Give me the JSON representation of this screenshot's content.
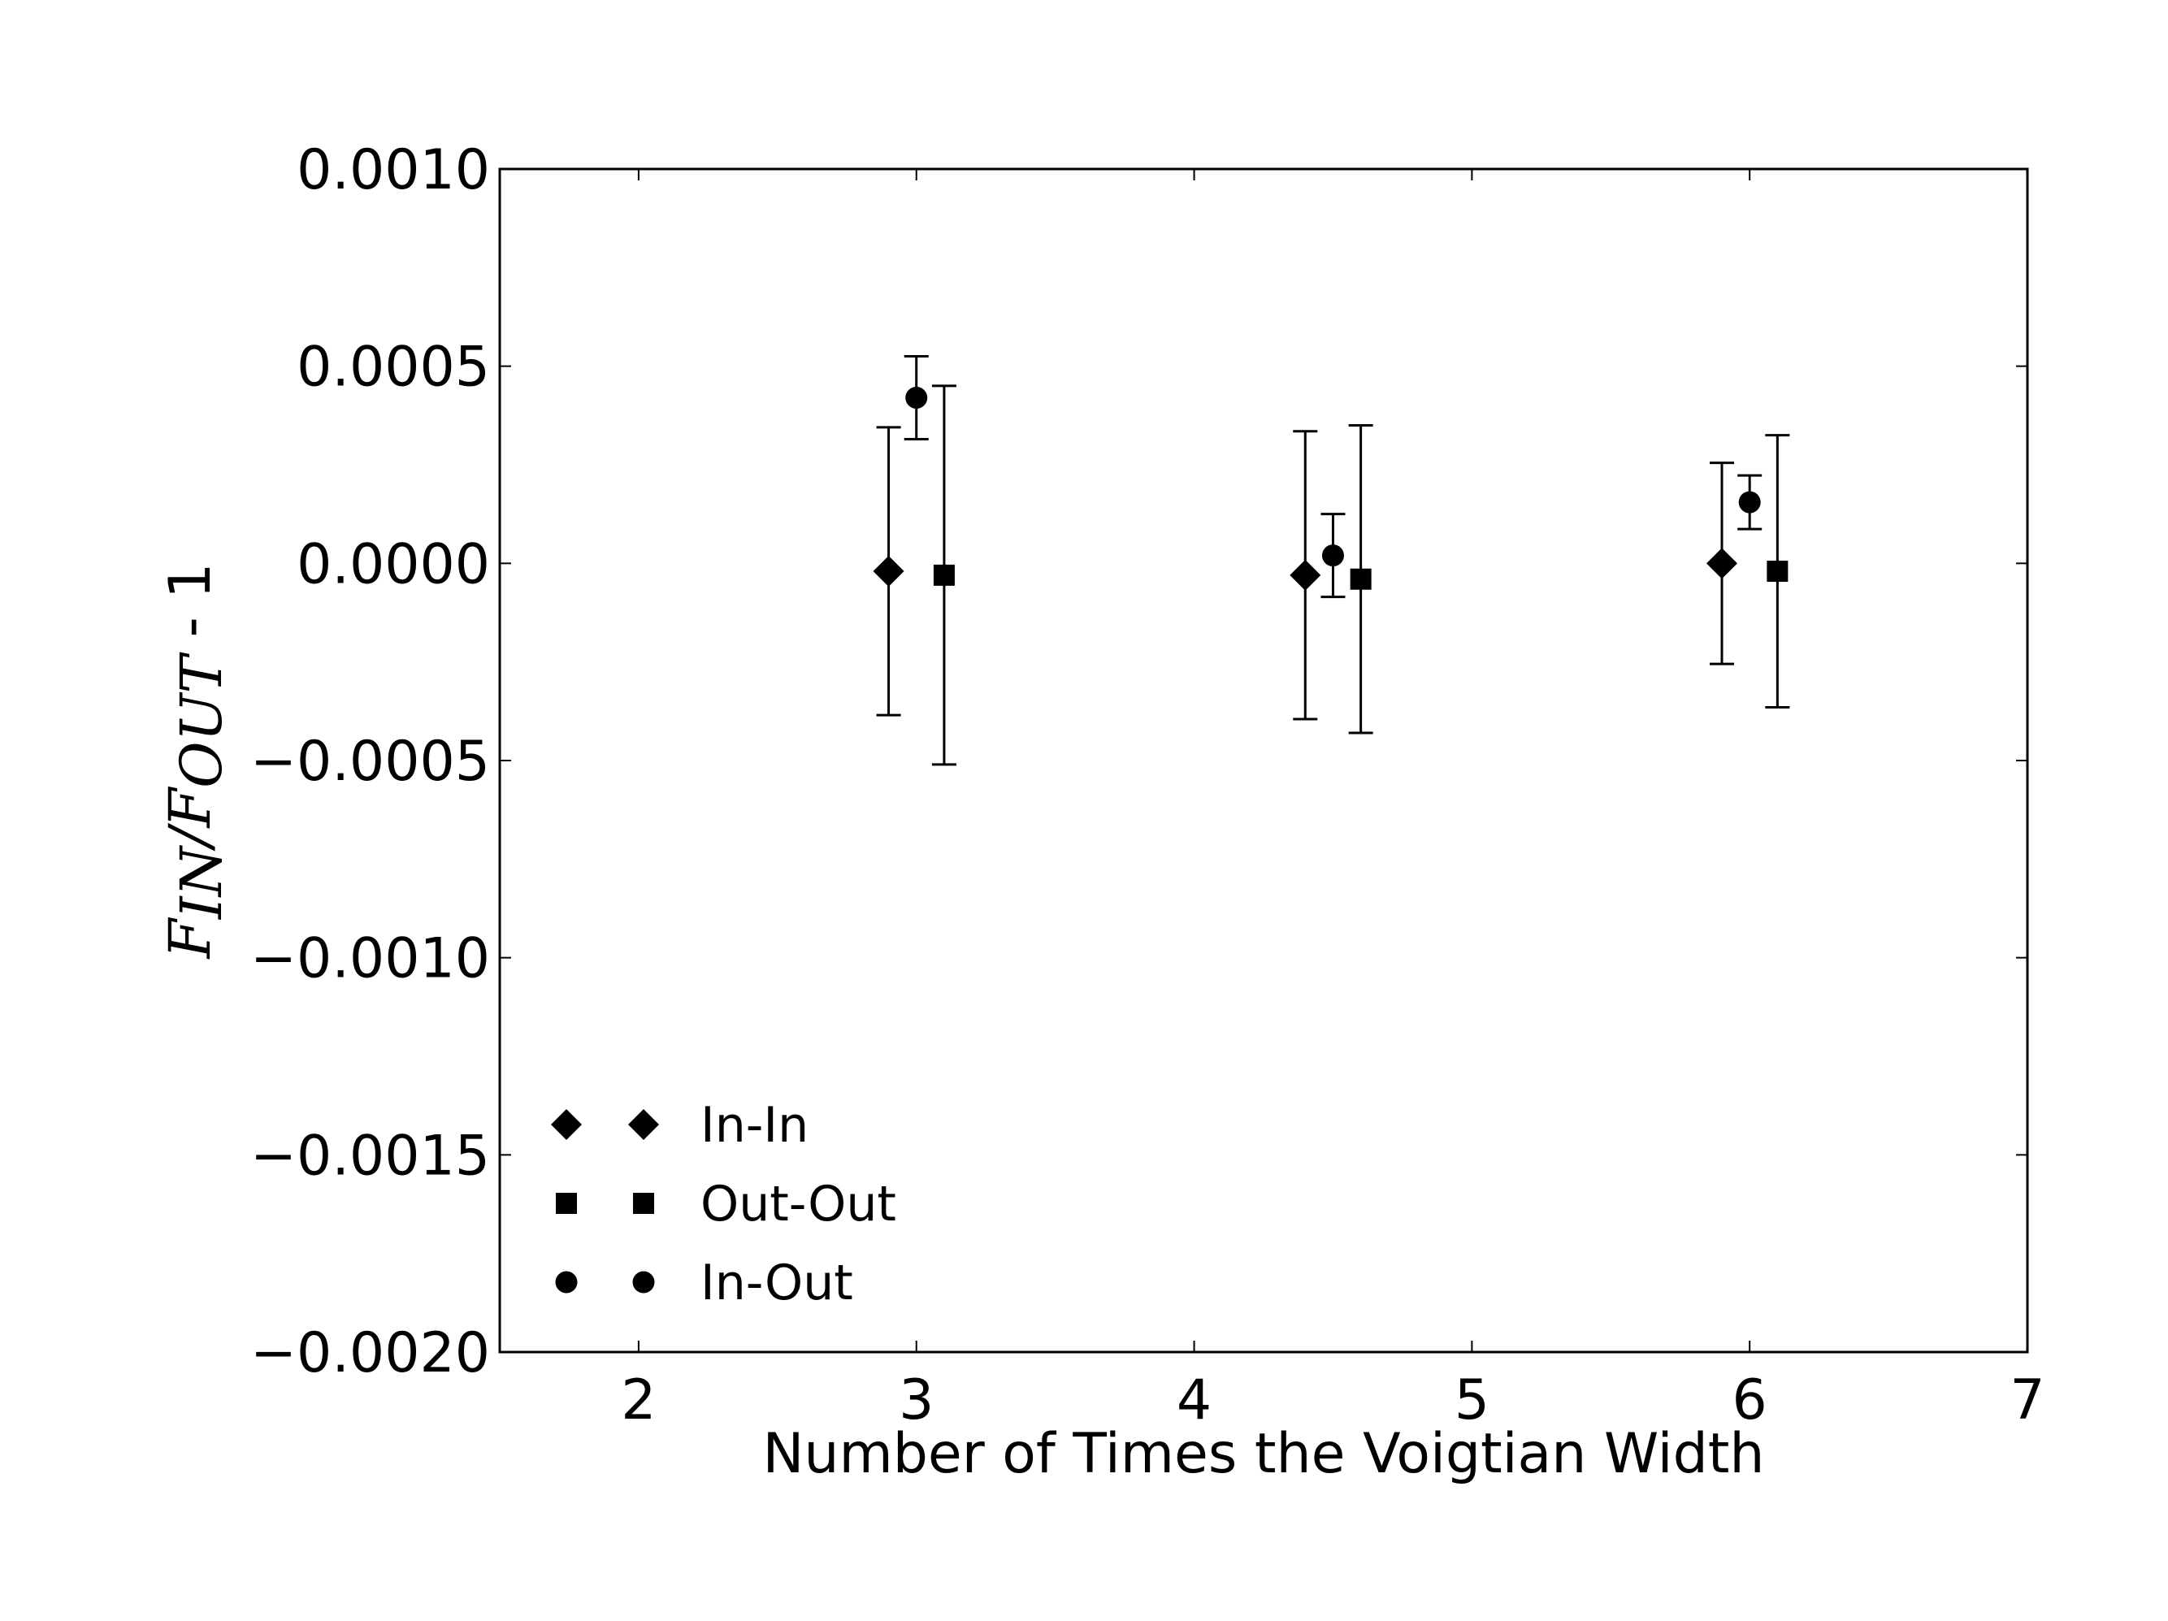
{
  "chart_data": {
    "type": "scatter",
    "title": "",
    "xlabel": "Number of Times the Voigtian Width",
    "ylabel": {
      "F_main": "F",
      "sub_in": "IN",
      "slash": "/",
      "F2_main": "F",
      "sub_out": "OUT",
      "suffix": " - 1"
    },
    "xlim": [
      1.5,
      7
    ],
    "ylim": [
      -0.002,
      0.001
    ],
    "xticks": [
      2,
      3,
      4,
      5,
      6,
      7
    ],
    "xtick_labels": [
      "2",
      "3",
      "4",
      "5",
      "6",
      "7"
    ],
    "yticks": [
      0.001,
      0.0005,
      0.0,
      -0.0005,
      -0.001,
      -0.0015,
      -0.002
    ],
    "ytick_labels": [
      "0.0010",
      "0.0005",
      "0.0000",
      "−0.0005",
      "−0.0010",
      "−0.0015",
      "−0.0020"
    ],
    "grid": false,
    "legend_position": "lower-left",
    "marker_color": "#000000",
    "series": [
      {
        "name": "In-In",
        "marker": "diamond",
        "points": [
          {
            "x": 2.9,
            "y": -2e-05,
            "err": 0.000365
          },
          {
            "x": 4.4,
            "y": -3e-05,
            "err": 0.000365
          },
          {
            "x": 5.9,
            "y": 0.0,
            "err": 0.000255
          }
        ]
      },
      {
        "name": "Out-Out",
        "marker": "square",
        "points": [
          {
            "x": 3.1,
            "y": -3e-05,
            "err": 0.00048
          },
          {
            "x": 4.6,
            "y": -4e-05,
            "err": 0.00039
          },
          {
            "x": 6.1,
            "y": -2e-05,
            "err": 0.000345
          }
        ]
      },
      {
        "name": "In-Out",
        "marker": "circle",
        "points": [
          {
            "x": 3.0,
            "y": 0.00042,
            "err": 0.000105
          },
          {
            "x": 4.5,
            "y": 2e-05,
            "err": 0.000105
          },
          {
            "x": 6.0,
            "y": 0.000155,
            "err": 6.8e-05
          }
        ]
      }
    ]
  }
}
